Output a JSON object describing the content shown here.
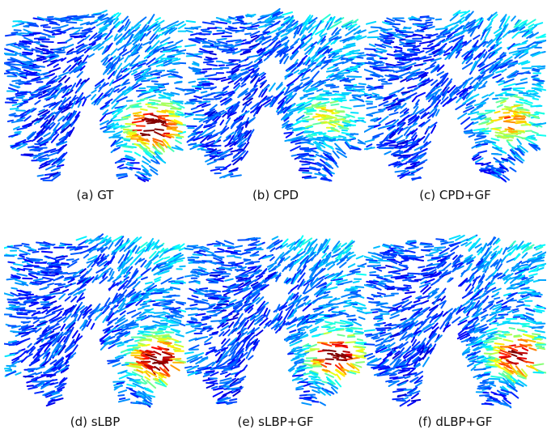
{
  "figure": {
    "panels": [
      {
        "id": "a",
        "caption": "(a) GT",
        "hot_intensity": 1.0,
        "hot_center": [
          0.82,
          0.68
        ]
      },
      {
        "id": "b",
        "caption": "(b) CPD",
        "hot_intensity": 0.45,
        "hot_center": [
          0.78,
          0.62
        ]
      },
      {
        "id": "c",
        "caption": "(c) CPD+GF",
        "hot_intensity": 0.6,
        "hot_center": [
          0.8,
          0.64
        ]
      },
      {
        "id": "d",
        "caption": "(d) sLBP",
        "hot_intensity": 1.0,
        "hot_center": [
          0.84,
          0.72
        ]
      },
      {
        "id": "e",
        "caption": "(e) sLBP+GF",
        "hot_intensity": 0.95,
        "hot_center": [
          0.83,
          0.7
        ]
      },
      {
        "id": "f",
        "caption": "(f) dLBP+GF",
        "hot_intensity": 0.9,
        "hot_center": [
          0.84,
          0.7
        ]
      }
    ],
    "colormap": "jet"
  }
}
